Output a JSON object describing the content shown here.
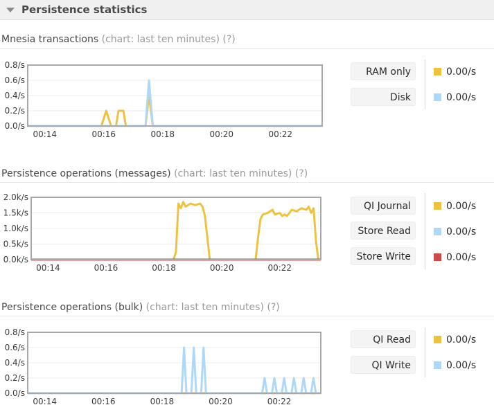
{
  "header": {
    "title": "Persistence statistics"
  },
  "colors": {
    "yellow": "#edc240",
    "blue": "#afd8f8",
    "red": "#cb4b4b",
    "axis": "#a8a8a8",
    "grid": "#ececec"
  },
  "sections": [
    {
      "title": "Mnesia transactions",
      "subtitle": "(chart: last ten minutes) (?)",
      "legend": [
        {
          "label": "RAM only",
          "value": "0.00/s",
          "color": "#edc240"
        },
        {
          "label": "Disk",
          "value": "0.00/s",
          "color": "#afd8f8"
        }
      ],
      "chart_data": {
        "type": "line",
        "x_ticks": [
          "00:14",
          "00:16",
          "00:18",
          "00:20",
          "00:22"
        ],
        "y_ticks": [
          "0.0/s",
          "0.2/s",
          "0.4/s",
          "0.6/s",
          "0.8/s"
        ],
        "ylim": [
          0,
          0.8
        ],
        "xlim": [
          "00:13:25",
          "00:23:25"
        ],
        "series": [
          {
            "name": "RAM only",
            "color": "#edc240",
            "points": [
              [
                "00:13:25",
                0
              ],
              [
                "00:15:55",
                0
              ],
              [
                "00:16:05",
                0.2
              ],
              [
                "00:16:15",
                0
              ],
              [
                "00:16:25",
                0
              ],
              [
                "00:16:30",
                0.2
              ],
              [
                "00:16:40",
                0.2
              ],
              [
                "00:16:45",
                0
              ],
              [
                "00:17:25",
                0
              ],
              [
                "00:17:32",
                0.4
              ],
              [
                "00:17:40",
                0
              ],
              [
                "00:23:25",
                0
              ]
            ]
          },
          {
            "name": "Disk",
            "color": "#afd8f8",
            "points": [
              [
                "00:13:25",
                0
              ],
              [
                "00:17:25",
                0
              ],
              [
                "00:17:32",
                0.6
              ],
              [
                "00:17:40",
                0
              ],
              [
                "00:23:25",
                0
              ]
            ]
          }
        ]
      }
    },
    {
      "title": "Persistence operations (messages)",
      "subtitle": "(chart: last ten minutes) (?)",
      "legend": [
        {
          "label": "QI Journal",
          "value": "0.00/s",
          "color": "#edc240"
        },
        {
          "label": "Store Read",
          "value": "0.00/s",
          "color": "#afd8f8"
        },
        {
          "label": "Store Write",
          "value": "0.00/s",
          "color": "#cb4b4b"
        }
      ],
      "chart_data": {
        "type": "line",
        "x_ticks": [
          "00:14",
          "00:16",
          "00:18",
          "00:20",
          "00:22"
        ],
        "y_ticks": [
          "0.0k/s",
          "0.5k/s",
          "1.0k/s",
          "1.5k/s",
          "2.0k/s"
        ],
        "ylim": [
          0,
          2000
        ],
        "xlim": [
          "00:13:25",
          "00:23:25"
        ],
        "series": [
          {
            "name": "QI Journal",
            "color": "#edc240",
            "points": [
              [
                "00:13:25",
                0
              ],
              [
                "00:18:20",
                0
              ],
              [
                "00:18:25",
                250
              ],
              [
                "00:18:30",
                1800
              ],
              [
                "00:18:35",
                1650
              ],
              [
                "00:18:40",
                1850
              ],
              [
                "00:18:45",
                1700
              ],
              [
                "00:18:55",
                1800
              ],
              [
                "00:19:05",
                1750
              ],
              [
                "00:19:15",
                1800
              ],
              [
                "00:19:20",
                1700
              ],
              [
                "00:19:25",
                1400
              ],
              [
                "00:19:30",
                700
              ],
              [
                "00:19:35",
                0
              ],
              [
                "00:21:10",
                0
              ],
              [
                "00:21:15",
                700
              ],
              [
                "00:21:20",
                1300
              ],
              [
                "00:21:25",
                1450
              ],
              [
                "00:21:35",
                1500
              ],
              [
                "00:21:45",
                1600
              ],
              [
                "00:21:50",
                1450
              ],
              [
                "00:22:00",
                1500
              ],
              [
                "00:22:05",
                1400
              ],
              [
                "00:22:10",
                1450
              ],
              [
                "00:22:15",
                1400
              ],
              [
                "00:22:25",
                1600
              ],
              [
                "00:22:35",
                1550
              ],
              [
                "00:22:45",
                1650
              ],
              [
                "00:22:55",
                1600
              ],
              [
                "00:23:00",
                1700
              ],
              [
                "00:23:05",
                1500
              ],
              [
                "00:23:10",
                1650
              ],
              [
                "00:23:15",
                600
              ],
              [
                "00:23:20",
                0
              ],
              [
                "00:23:25",
                0
              ]
            ]
          },
          {
            "name": "Store Read",
            "color": "#afd8f8",
            "points": [
              [
                "00:13:25",
                0
              ],
              [
                "00:23:25",
                0
              ]
            ]
          },
          {
            "name": "Store Write",
            "color": "#cb4b4b",
            "points": [
              [
                "00:13:25",
                0
              ],
              [
                "00:23:25",
                0
              ]
            ]
          }
        ]
      }
    },
    {
      "title": "Persistence operations (bulk)",
      "subtitle": "(chart: last ten minutes) (?)",
      "legend": [
        {
          "label": "QI Read",
          "value": "0.00/s",
          "color": "#edc240"
        },
        {
          "label": "QI Write",
          "value": "0.00/s",
          "color": "#afd8f8"
        }
      ],
      "chart_data": {
        "type": "line",
        "x_ticks": [
          "00:14",
          "00:16",
          "00:18",
          "00:20",
          "00:22"
        ],
        "y_ticks": [
          "0.0/s",
          "0.2/s",
          "0.4/s",
          "0.6/s",
          "0.8/s"
        ],
        "ylim": [
          0,
          0.8
        ],
        "xlim": [
          "00:13:25",
          "00:23:25"
        ],
        "series": [
          {
            "name": "QI Read",
            "color": "#edc240",
            "points": [
              [
                "00:13:25",
                0
              ],
              [
                "00:23:25",
                0
              ]
            ]
          },
          {
            "name": "QI Write",
            "color": "#afd8f8",
            "points": [
              [
                "00:13:25",
                0
              ],
              [
                "00:18:40",
                0
              ],
              [
                "00:18:45",
                0.6
              ],
              [
                "00:18:50",
                0
              ],
              [
                "00:19:00",
                0
              ],
              [
                "00:19:05",
                0.6
              ],
              [
                "00:19:10",
                0
              ],
              [
                "00:19:20",
                0
              ],
              [
                "00:19:25",
                0.6
              ],
              [
                "00:19:30",
                0
              ],
              [
                "00:21:25",
                0
              ],
              [
                "00:21:30",
                0.2
              ],
              [
                "00:21:35",
                0
              ],
              [
                "00:21:45",
                0
              ],
              [
                "00:21:50",
                0.2
              ],
              [
                "00:21:55",
                0
              ],
              [
                "00:22:05",
                0
              ],
              [
                "00:22:10",
                0.2
              ],
              [
                "00:22:15",
                0
              ],
              [
                "00:22:25",
                0
              ],
              [
                "00:22:30",
                0.2
              ],
              [
                "00:22:35",
                0
              ],
              [
                "00:22:45",
                0
              ],
              [
                "00:22:50",
                0.2
              ],
              [
                "00:22:55",
                0
              ],
              [
                "00:23:05",
                0
              ],
              [
                "00:23:10",
                0.2
              ],
              [
                "00:23:15",
                0
              ],
              [
                "00:23:25",
                0
              ]
            ]
          }
        ]
      }
    }
  ]
}
